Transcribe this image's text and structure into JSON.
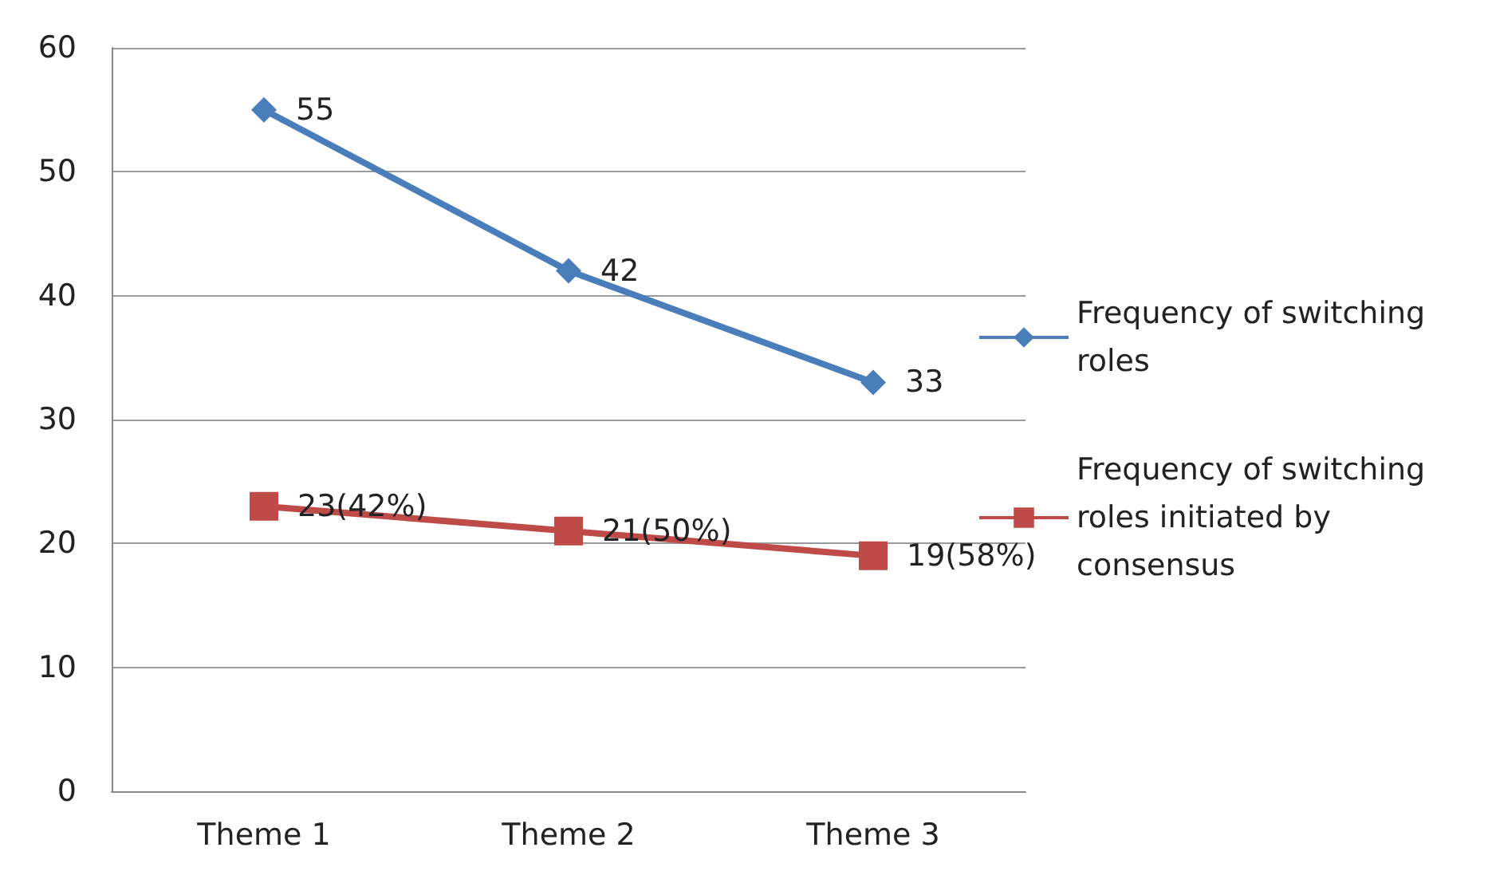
{
  "chart_data": {
    "type": "line",
    "categories": [
      "Theme 1",
      "Theme 2",
      "Theme 3"
    ],
    "series": [
      {
        "name": "Frequency of switching roles",
        "color": "#4a7ebb",
        "marker": "diamond",
        "values": [
          55,
          42,
          33
        ],
        "value_labels": [
          "55",
          "42",
          "33"
        ]
      },
      {
        "name": "Frequency of switching roles initiated by consensus",
        "color": "#be4b48",
        "marker": "square",
        "values": [
          23,
          21,
          19
        ],
        "value_labels": [
          "23(42%)",
          "21(50%)",
          "19(58%)"
        ]
      }
    ],
    "ylim": [
      0,
      60
    ],
    "yticks": [
      0,
      10,
      20,
      30,
      40,
      50,
      60
    ],
    "grid": "y",
    "legend": "right"
  }
}
